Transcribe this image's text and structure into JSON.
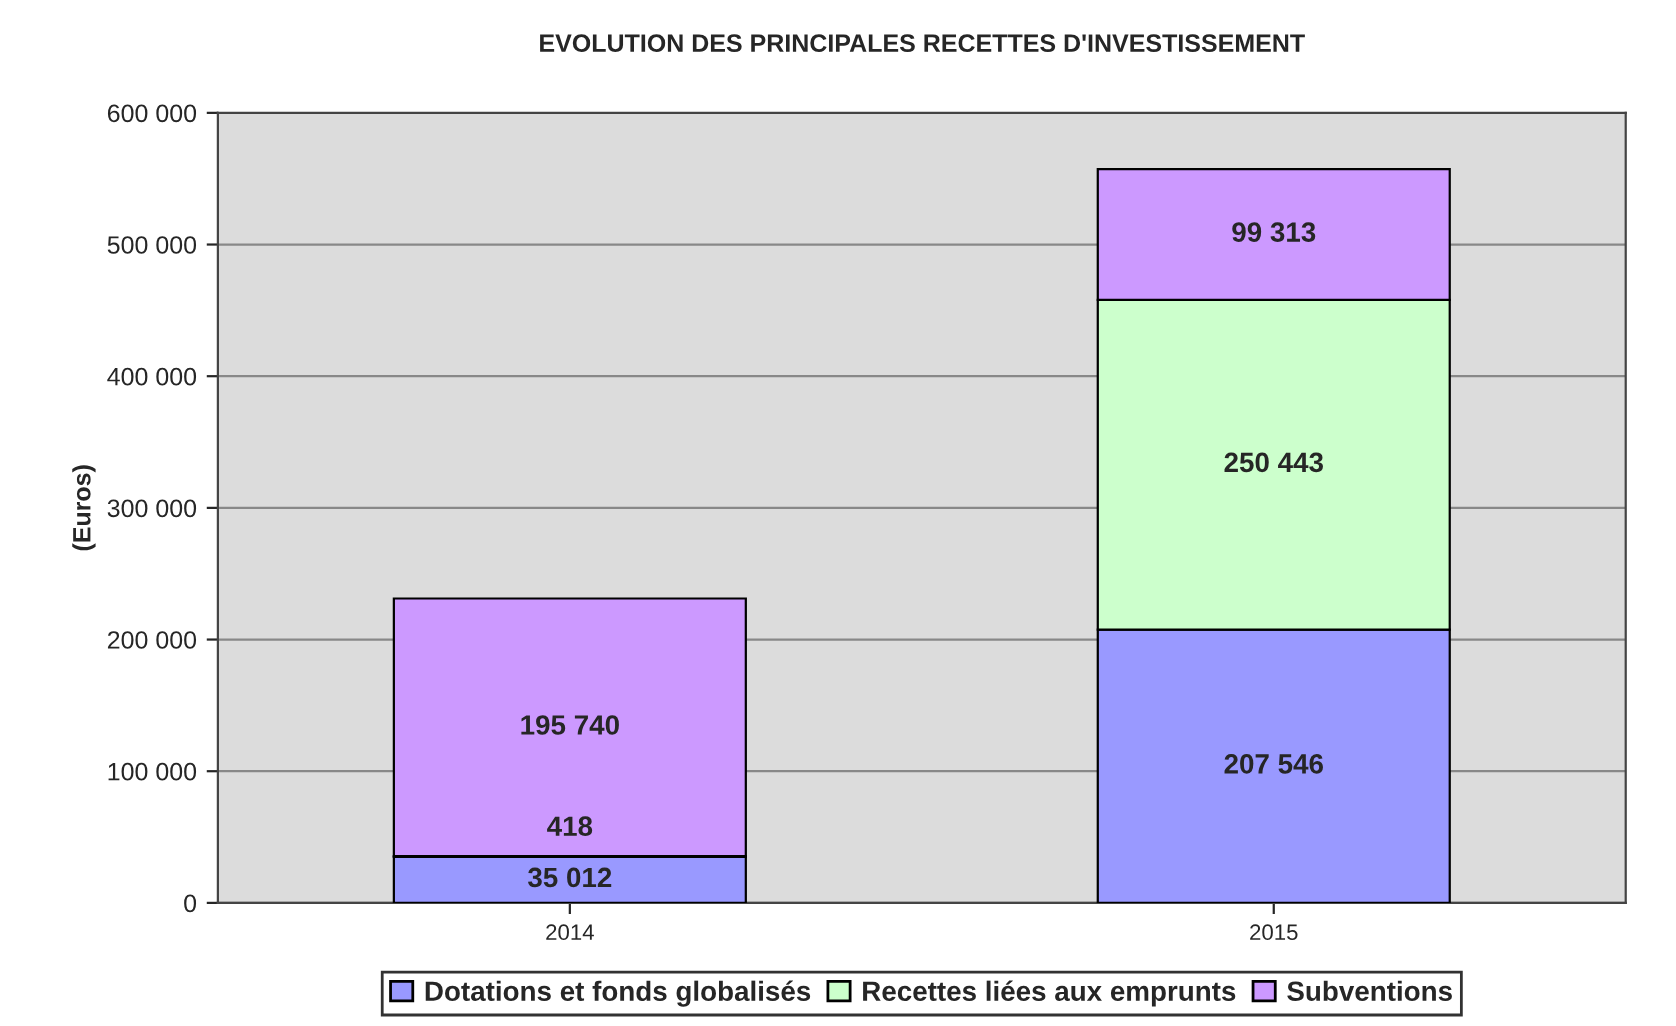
{
  "chart_data": {
    "type": "bar",
    "title": "EVOLUTION DES PRINCIPALES RECETTES D'INVESTISSEMENT",
    "ylabel": "(Euros)",
    "categories": [
      "2014",
      "2015"
    ],
    "stacked": true,
    "series": [
      {
        "name": "Dotations et fonds globalisés",
        "color": "#9999ff",
        "values": [
          35012,
          207546
        ],
        "value_labels": [
          "35 012",
          "207 546"
        ]
      },
      {
        "name": "Recettes liées aux emprunts",
        "color": "#ccffcc",
        "values": [
          418,
          250443
        ],
        "value_labels": [
          "418",
          "250 443"
        ]
      },
      {
        "name": "Subventions",
        "color": "#cc99ff",
        "values": [
          195740,
          99313
        ],
        "value_labels": [
          "195 740",
          "99 313"
        ]
      }
    ],
    "ylim": [
      0,
      600000
    ],
    "yticks": [
      0,
      {
        "value": 100000,
        "label": "100 000"
      },
      {
        "value": 200000,
        "label": "200 000"
      },
      {
        "value": 300000,
        "label": "300 000"
      },
      {
        "value": 400000,
        "label": "400 000"
      },
      {
        "value": 500000,
        "label": "500 000"
      },
      {
        "value": 600000,
        "label": "600 000"
      }
    ],
    "grid": "y",
    "legend": "bottom"
  }
}
